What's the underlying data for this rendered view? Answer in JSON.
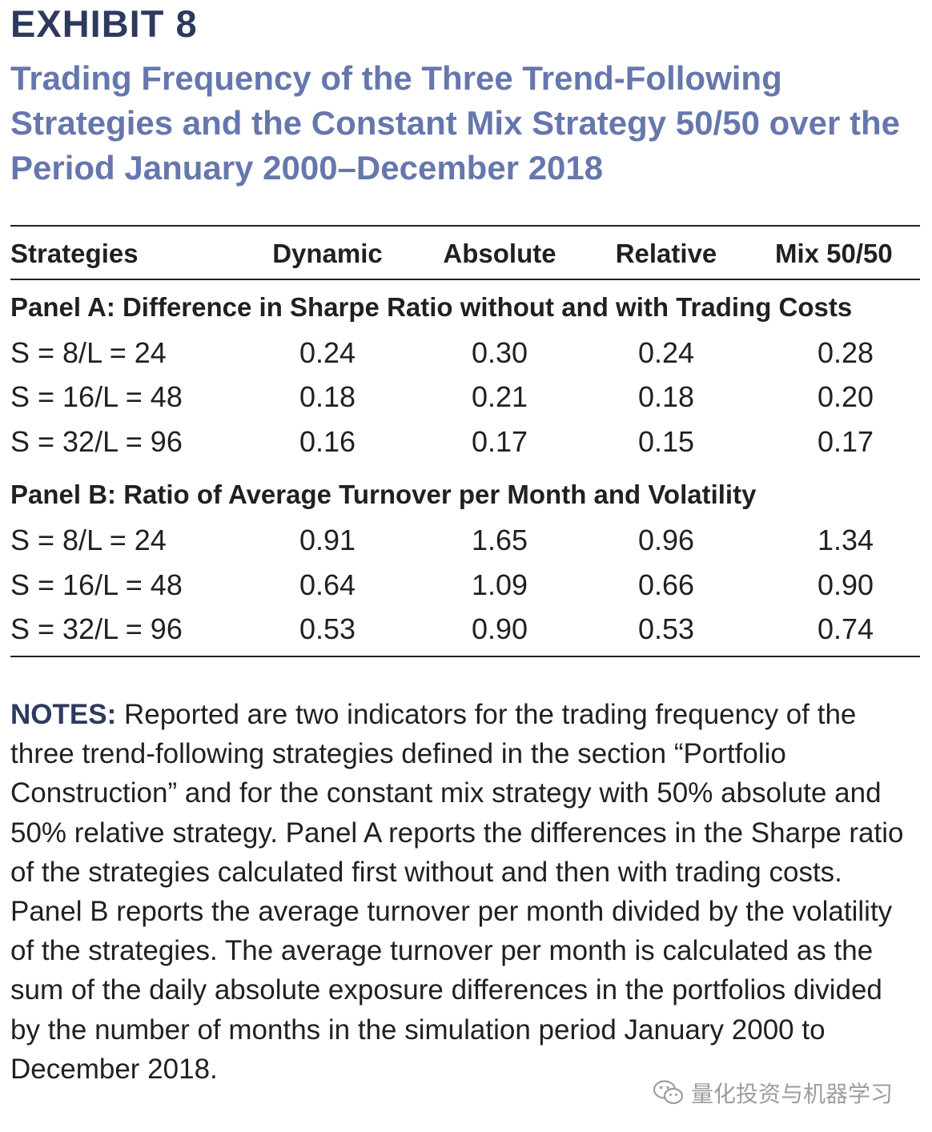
{
  "exhibit": {
    "label": "EXHIBIT 8",
    "title": "Trading Frequency of the Three Trend-Following Strategies and the Constant Mix Strategy 50/50 over the Period January 2000–December 2018"
  },
  "table": {
    "headers": [
      "Strategies",
      "Dynamic",
      "Absolute",
      "Relative",
      "Mix 50/50"
    ],
    "panels": [
      {
        "heading": "Panel A: Difference in Sharpe Ratio without and with Trading Costs",
        "rows": [
          [
            "S = 8/L = 24",
            "0.24",
            "0.30",
            "0.24",
            "0.28"
          ],
          [
            "S = 16/L = 48",
            "0.18",
            "0.21",
            "0.18",
            "0.20"
          ],
          [
            "S = 32/L = 96",
            "0.16",
            "0.17",
            "0.15",
            "0.17"
          ]
        ]
      },
      {
        "heading": "Panel B: Ratio of Average Turnover per Month and Volatility",
        "rows": [
          [
            "S = 8/L = 24",
            "0.91",
            "1.65",
            "0.96",
            "1.34"
          ],
          [
            "S = 16/L = 48",
            "0.64",
            "1.09",
            "0.66",
            "0.90"
          ],
          [
            "S = 32/L = 96",
            "0.53",
            "0.90",
            "0.53",
            "0.74"
          ]
        ]
      }
    ]
  },
  "notes": {
    "label": "NOTES:",
    "text": "Reported are two indicators for the trading frequency of the three trend-following strategies defined in the section “Portfolio Construction” and for the constant mix strategy with 50% absolute and 50% relative strategy. Panel A reports the differences in the Sharpe ratio of the strategies calculated first without and then with trading costs. Panel B reports the average turnover per month divided by the volatility of the strategies. The average turnover per month is calculated as the sum of the daily absolute exposure differences in the portfolios divided by the number of months in the simulation period January 2000 to December 2018."
  },
  "watermark": {
    "text": "量化投资与机器学习",
    "icon": "wechat-icon"
  }
}
